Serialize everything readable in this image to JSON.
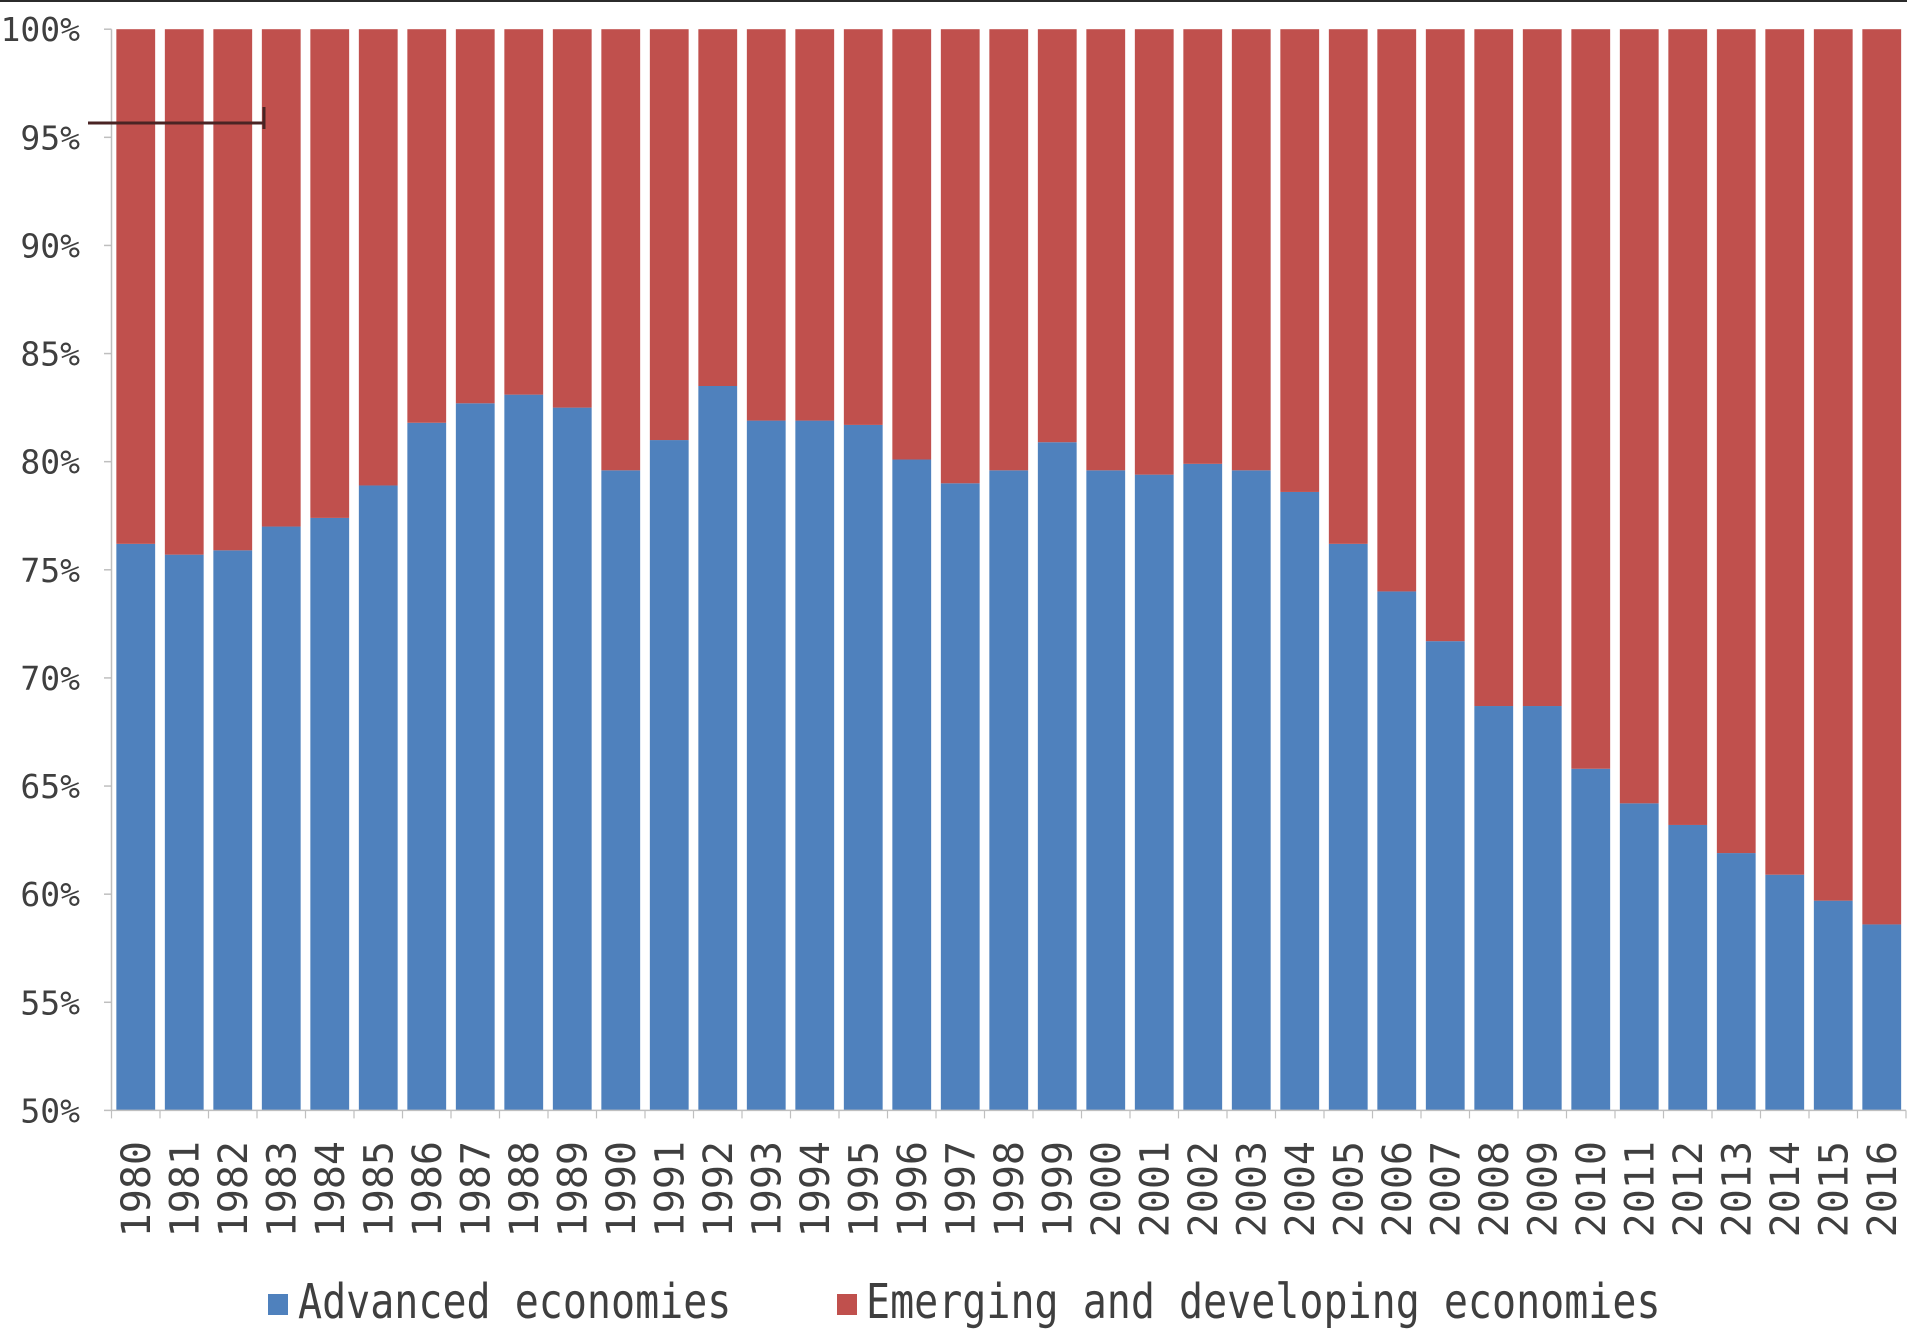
{
  "chart_data": {
    "type": "bar",
    "stacking": "percent",
    "categories": [
      "1980",
      "1981",
      "1982",
      "1983",
      "1984",
      "1985",
      "1986",
      "1987",
      "1988",
      "1989",
      "1990",
      "1991",
      "1992",
      "1993",
      "1994",
      "1995",
      "1996",
      "1997",
      "1998",
      "1999",
      "2000",
      "2001",
      "2002",
      "2003",
      "2004",
      "2005",
      "2006",
      "2007",
      "2008",
      "2009",
      "2010",
      "2011",
      "2012",
      "2013",
      "2014",
      "2015",
      "2016"
    ],
    "series": [
      {
        "name": "Advanced economies",
        "color": "#4f81bd",
        "values": [
          76.2,
          75.7,
          75.9,
          77.0,
          77.4,
          78.9,
          81.8,
          82.7,
          83.1,
          82.5,
          79.6,
          81.0,
          83.5,
          81.9,
          81.9,
          81.7,
          80.1,
          79.0,
          79.6,
          80.9,
          79.6,
          79.4,
          79.9,
          79.6,
          78.6,
          76.2,
          74.0,
          71.7,
          68.7,
          68.7,
          65.8,
          64.2,
          63.2,
          61.9,
          60.9,
          59.7,
          58.6
        ]
      },
      {
        "name": "Emerging and developing economies",
        "color": "#c0504d",
        "values": [
          23.8,
          24.3,
          24.1,
          23.0,
          22.6,
          21.1,
          18.2,
          17.3,
          16.9,
          17.5,
          20.4,
          19.0,
          16.5,
          18.1,
          18.1,
          18.3,
          19.9,
          21.0,
          20.4,
          19.1,
          20.4,
          20.6,
          20.1,
          20.4,
          21.4,
          23.8,
          26.0,
          28.3,
          31.3,
          31.3,
          34.2,
          35.8,
          36.8,
          38.1,
          39.1,
          40.3,
          41.4
        ]
      }
    ],
    "ylim": [
      50,
      100
    ],
    "ytick_values": [
      100,
      95,
      90,
      85,
      80,
      75,
      70,
      65,
      60,
      55,
      50
    ],
    "ytick_labels": [
      "100%",
      "95%",
      "90%",
      "85%",
      "80%",
      "75%",
      "70%",
      "65%",
      "60%",
      "55%",
      "50%"
    ],
    "grid": false,
    "legend_position": "bottom"
  }
}
